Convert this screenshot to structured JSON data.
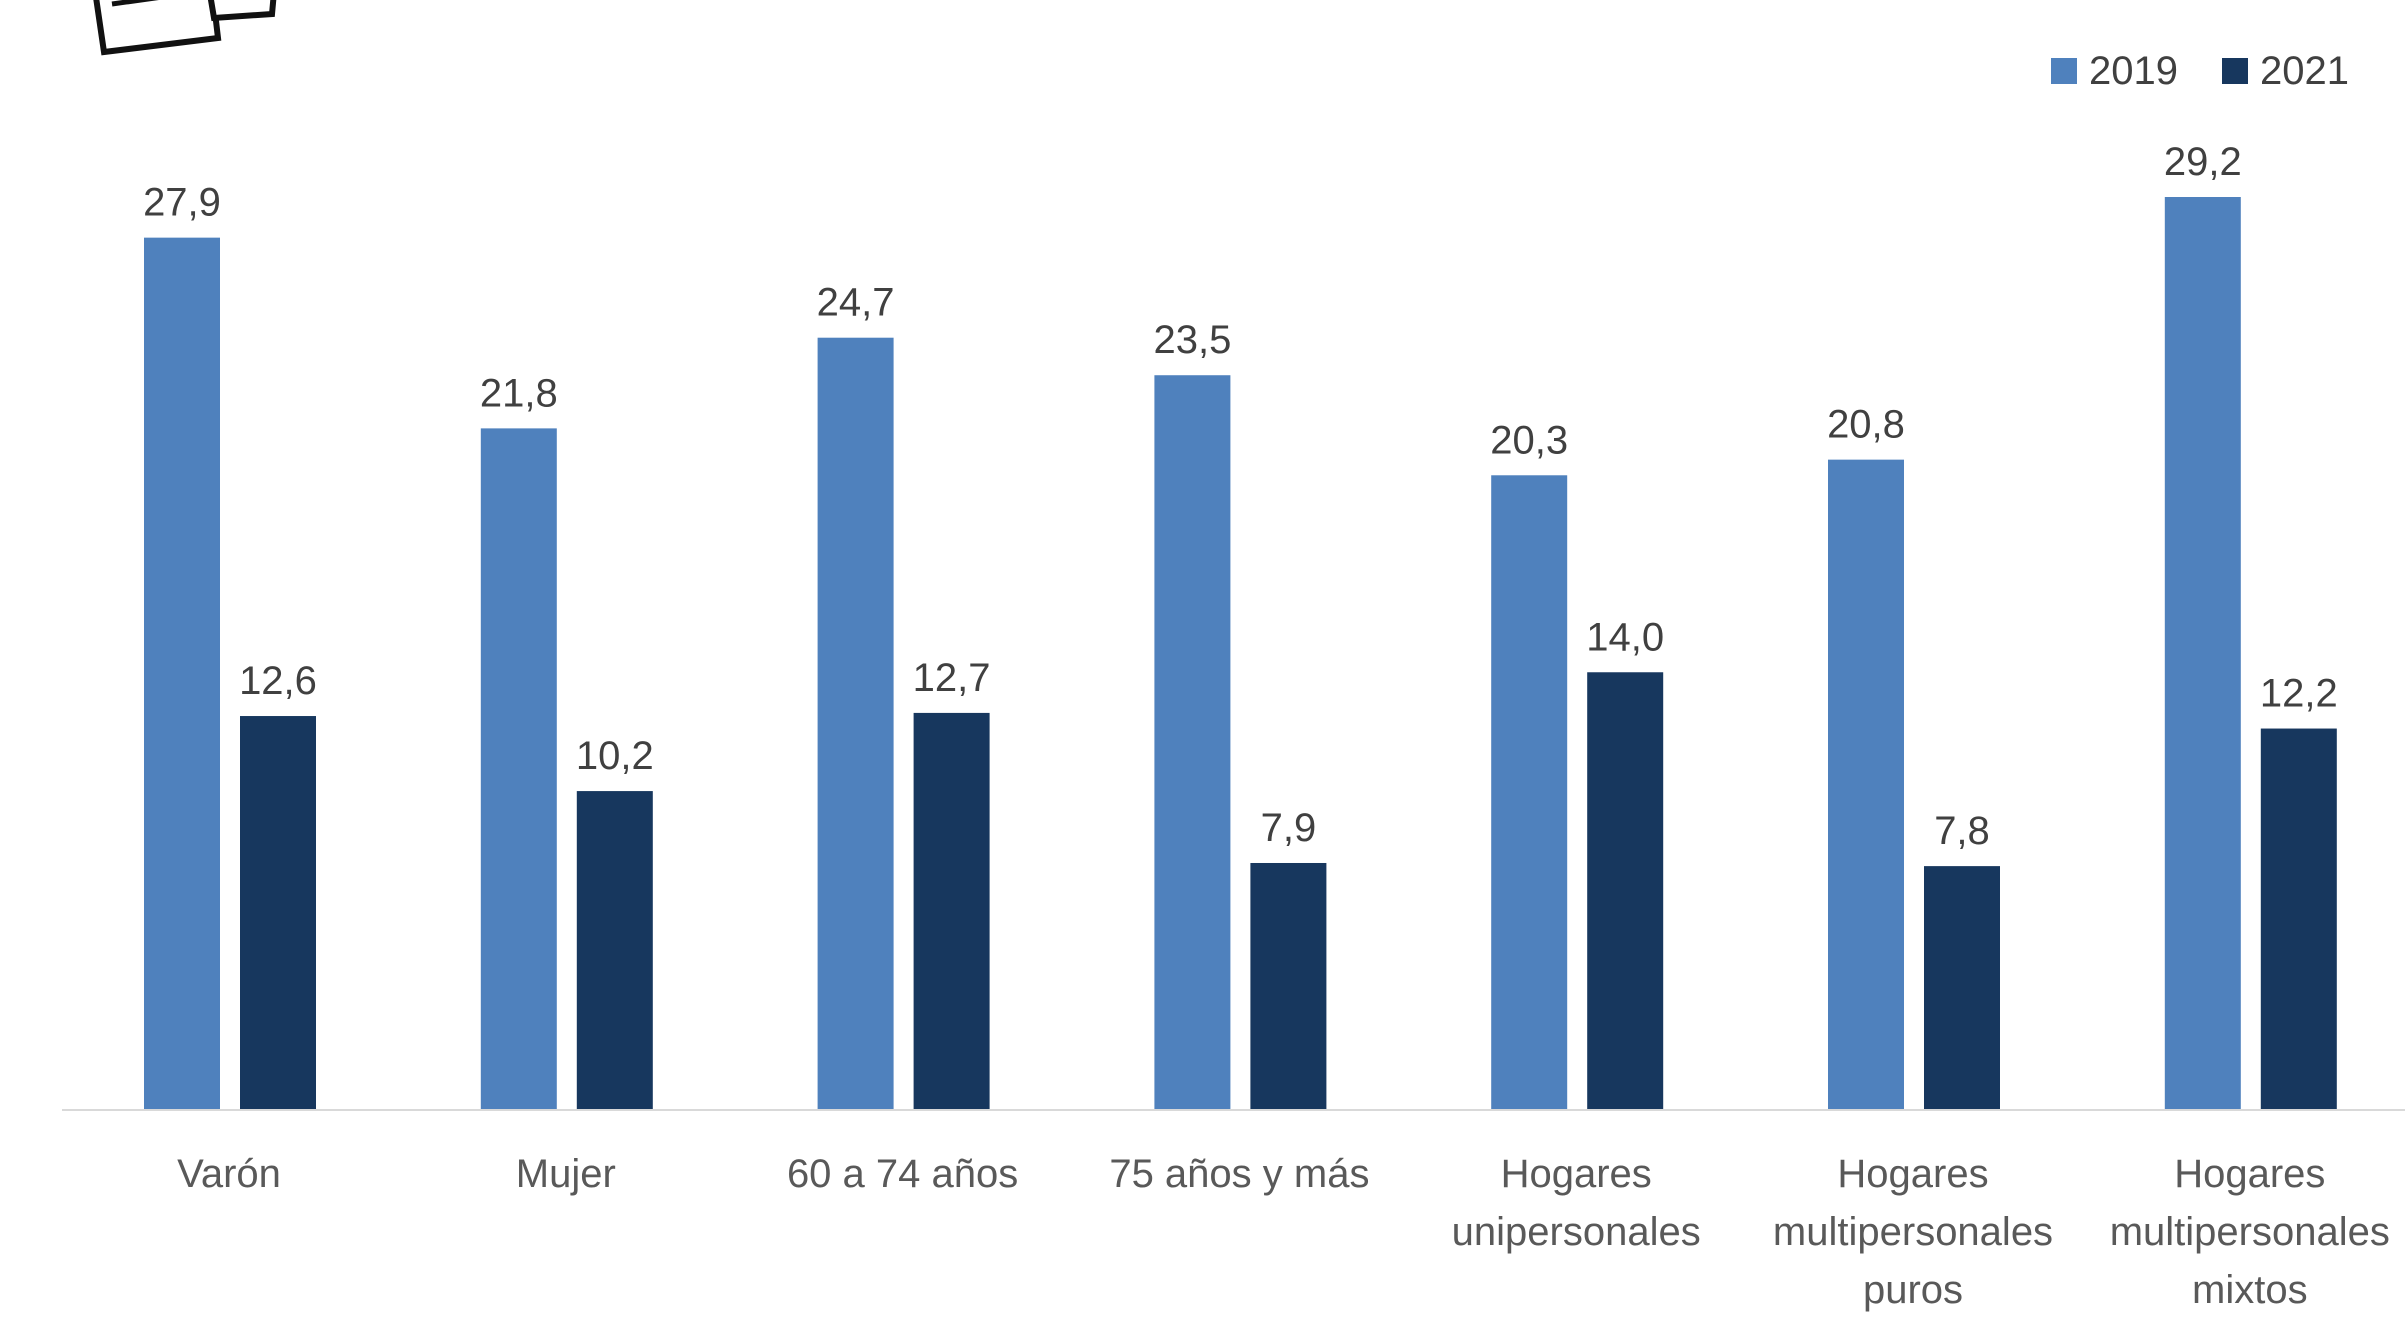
{
  "chart_data": {
    "type": "bar",
    "categories": [
      [
        "Varón"
      ],
      [
        "Mujer"
      ],
      [
        "60 a 74 años"
      ],
      [
        "75 años y más"
      ],
      [
        "Hogares",
        "unipersonales"
      ],
      [
        "Hogares",
        "multipersonales",
        "puros"
      ],
      [
        "Hogares",
        "multipersonales",
        "mixtos"
      ]
    ],
    "series": [
      {
        "name": "2019",
        "color": "#4f81bd",
        "values": [
          27.9,
          21.8,
          24.7,
          23.5,
          20.3,
          20.8,
          29.2
        ]
      },
      {
        "name": "2021",
        "color": "#17375e",
        "values": [
          12.6,
          10.2,
          12.7,
          7.9,
          14.0,
          7.8,
          12.2
        ]
      }
    ],
    "ylim": [
      0,
      29.2
    ],
    "grid": false,
    "legend_position": "top-right",
    "title": "",
    "xlabel": "",
    "ylabel": ""
  }
}
